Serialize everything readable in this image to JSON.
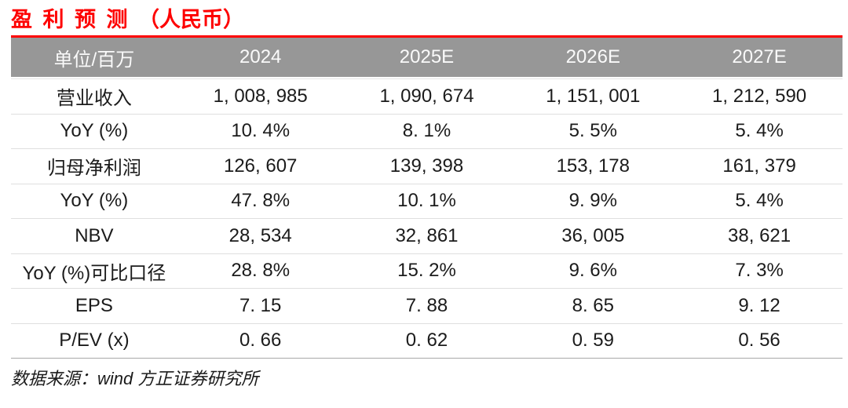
{
  "title": {
    "text": "盈 利 预 测　（人民币）"
  },
  "table": {
    "columns": [
      "单位/百万",
      "2024",
      "2025E",
      "2026E",
      "2027E"
    ],
    "rows": [
      {
        "label": "营业收入",
        "values": [
          "1, 008, 985",
          "1, 090, 674",
          "1, 151, 001",
          "1, 212, 590"
        ]
      },
      {
        "label": "YoY (%)",
        "values": [
          "10. 4%",
          "8. 1%",
          "5. 5%",
          "5. 4%"
        ]
      },
      {
        "label": "归母净利润",
        "values": [
          "126, 607",
          "139, 398",
          "153, 178",
          "161, 379"
        ]
      },
      {
        "label": "YoY (%)",
        "values": [
          "47. 8%",
          "10. 1%",
          "9. 9%",
          "5. 4%"
        ]
      },
      {
        "label": "NBV",
        "values": [
          "28, 534",
          "32, 861",
          "36, 005",
          "38, 621"
        ]
      },
      {
        "label": "YoY (%)可比口径",
        "values": [
          "28. 8%",
          "15. 2%",
          "9. 6%",
          "7. 3%"
        ]
      },
      {
        "label": "EPS",
        "values": [
          "7. 15",
          "7. 88",
          "8. 65",
          "9. 12"
        ]
      },
      {
        "label": "P/EV (x)",
        "values": [
          "0. 66",
          "0. 62",
          "0. 59",
          "0. 56"
        ]
      }
    ]
  },
  "footer": {
    "source": "数据来源：wind 方正证券研究所"
  },
  "colors": {
    "accent_red": "#fe0000",
    "header_bg": "#979797",
    "header_text": "#fafafa",
    "body_text": "#1b1b1b",
    "row_divider": "#dfdfdf",
    "table_bottom_border": "#a8a8a8"
  },
  "chart_data": {
    "type": "table",
    "title": "盈利预测（人民币）",
    "unit_label": "单位/百万",
    "columns": [
      "2024",
      "2025E",
      "2026E",
      "2027E"
    ],
    "rows": [
      {
        "metric": "营业收入",
        "values": [
          1008985,
          1090674,
          1151001,
          1212590
        ]
      },
      {
        "metric": "YoY (%)",
        "values": [
          10.4,
          8.1,
          5.5,
          5.4
        ]
      },
      {
        "metric": "归母净利润",
        "values": [
          126607,
          139398,
          153178,
          161379
        ]
      },
      {
        "metric": "YoY (%)",
        "values": [
          47.8,
          10.1,
          9.9,
          5.4
        ]
      },
      {
        "metric": "NBV",
        "values": [
          28534,
          32861,
          36005,
          38621
        ]
      },
      {
        "metric": "YoY (%)可比口径",
        "values": [
          28.8,
          15.2,
          9.6,
          7.3
        ]
      },
      {
        "metric": "EPS",
        "values": [
          7.15,
          7.88,
          8.65,
          9.12
        ]
      },
      {
        "metric": "P/EV (x)",
        "values": [
          0.66,
          0.62,
          0.59,
          0.56
        ]
      }
    ],
    "source": "数据来源：wind 方正证券研究所"
  }
}
